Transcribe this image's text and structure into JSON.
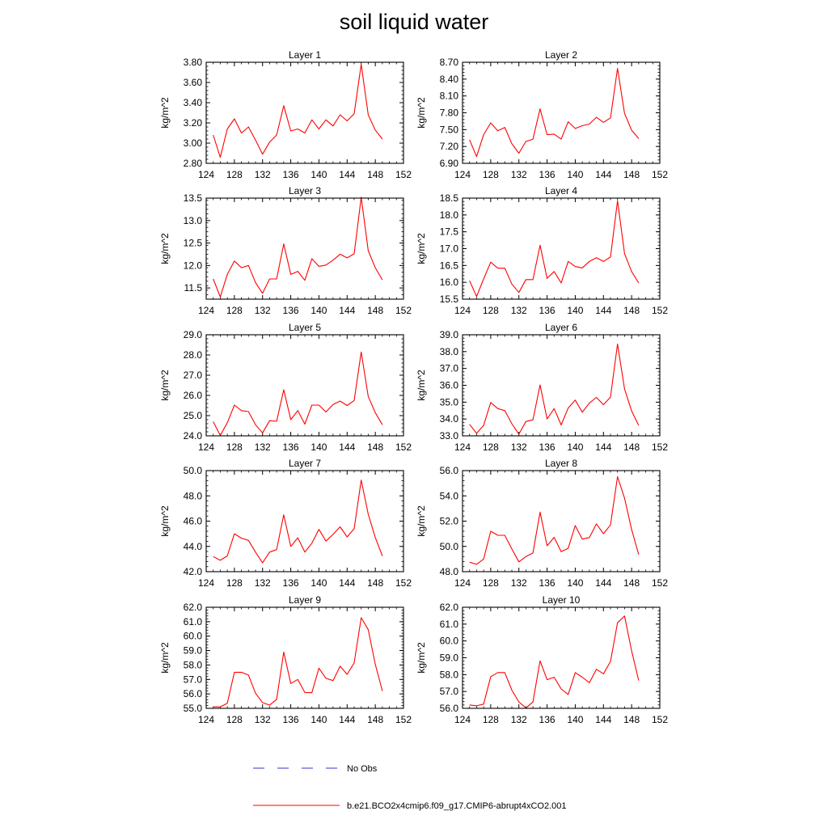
{
  "title": "soil liquid water",
  "chart_data": {
    "type": "line",
    "x": [
      125,
      126,
      127,
      128,
      129,
      130,
      131,
      132,
      133,
      134,
      135,
      136,
      137,
      138,
      139,
      140,
      141,
      142,
      143,
      144,
      145,
      146,
      147,
      148,
      149
    ],
    "xlim": [
      124,
      152
    ],
    "xticks": [
      124,
      128,
      132,
      136,
      140,
      144,
      148,
      152
    ],
    "series_name": "b.e21.BCO2x4cmip6.f09_g17.CMIP6-abrupt4xCO2.001",
    "series_color": "#ff0000",
    "panels": [
      {
        "title": "Layer 1",
        "ylabel": "kg/m^2",
        "ylim": [
          2.8,
          3.8
        ],
        "yticks": [
          "2.80",
          "3.00",
          "3.20",
          "3.40",
          "3.60",
          "3.80"
        ],
        "values": [
          3.08,
          2.86,
          3.14,
          3.24,
          3.1,
          3.16,
          3.03,
          2.89,
          3.01,
          3.08,
          3.37,
          3.12,
          3.14,
          3.1,
          3.23,
          3.14,
          3.23,
          3.17,
          3.28,
          3.22,
          3.29,
          3.78,
          3.28,
          3.13,
          3.04
        ]
      },
      {
        "title": "Layer 2",
        "ylabel": "kg/m^2",
        "ylim": [
          6.9,
          8.7
        ],
        "yticks": [
          "6.90",
          "7.20",
          "7.50",
          "7.80",
          "8.10",
          "8.40",
          "8.70"
        ],
        "values": [
          7.32,
          7.02,
          7.41,
          7.62,
          7.48,
          7.54,
          7.25,
          7.08,
          7.29,
          7.33,
          7.87,
          7.41,
          7.42,
          7.33,
          7.64,
          7.52,
          7.57,
          7.6,
          7.72,
          7.63,
          7.71,
          8.59,
          7.79,
          7.49,
          7.34
        ]
      },
      {
        "title": "Layer 3",
        "ylabel": "kg/m^2",
        "ylim": [
          11.25,
          13.5
        ],
        "yticks": [
          "11.5",
          "12.0",
          "12.5",
          "13.0",
          "13.5"
        ],
        "values": [
          11.7,
          11.3,
          11.8,
          12.1,
          11.95,
          12.0,
          11.62,
          11.38,
          11.7,
          11.7,
          12.48,
          11.8,
          11.87,
          11.67,
          12.15,
          11.98,
          12.01,
          12.12,
          12.25,
          12.17,
          12.26,
          13.52,
          12.33,
          11.95,
          11.68
        ]
      },
      {
        "title": "Layer 4",
        "ylabel": "kg/m^2",
        "ylim": [
          15.5,
          18.5
        ],
        "yticks": [
          "15.5",
          "16.0",
          "16.5",
          "17.0",
          "17.5",
          "18.0",
          "18.5"
        ],
        "values": [
          16.05,
          15.58,
          16.1,
          16.6,
          16.42,
          16.42,
          15.95,
          15.7,
          16.08,
          16.08,
          17.1,
          16.12,
          16.32,
          15.98,
          16.62,
          16.47,
          16.43,
          16.62,
          16.73,
          16.62,
          16.75,
          18.42,
          16.85,
          16.32,
          15.98
        ]
      },
      {
        "title": "Layer 5",
        "ylabel": "kg/m^2",
        "ylim": [
          24.0,
          29.0
        ],
        "yticks": [
          "24.0",
          "25.0",
          "26.0",
          "27.0",
          "28.0",
          "29.0"
        ],
        "values": [
          24.7,
          24.02,
          24.65,
          25.52,
          25.25,
          25.2,
          24.55,
          24.15,
          24.75,
          24.72,
          26.28,
          24.8,
          25.25,
          24.58,
          25.52,
          25.52,
          25.18,
          25.55,
          25.72,
          25.5,
          25.75,
          28.15,
          25.95,
          25.15,
          24.55
        ]
      },
      {
        "title": "Layer 6",
        "ylabel": "kg/m^2",
        "ylim": [
          33.0,
          39.0
        ],
        "yticks": [
          "33.0",
          "34.0",
          "35.0",
          "36.0",
          "37.0",
          "38.0",
          "39.0"
        ],
        "values": [
          33.68,
          33.15,
          33.62,
          34.98,
          34.62,
          34.5,
          33.72,
          33.1,
          33.85,
          33.95,
          36.02,
          34.0,
          34.62,
          33.65,
          34.65,
          35.12,
          34.4,
          34.95,
          35.28,
          34.85,
          35.3,
          38.45,
          35.78,
          34.48,
          33.62
        ]
      },
      {
        "title": "Layer 7",
        "ylabel": "kg/m^2",
        "ylim": [
          42.0,
          50.0
        ],
        "yticks": [
          "42.0",
          "44.0",
          "46.0",
          "48.0",
          "50.0"
        ],
        "values": [
          43.2,
          42.9,
          43.25,
          45.0,
          44.65,
          44.48,
          43.55,
          42.7,
          43.55,
          43.75,
          46.5,
          44.0,
          44.68,
          43.55,
          44.25,
          45.35,
          44.42,
          44.95,
          45.55,
          44.75,
          45.4,
          49.25,
          46.55,
          44.7,
          43.25
        ]
      },
      {
        "title": "Layer 8",
        "ylabel": "kg/m^2",
        "ylim": [
          48.0,
          56.0
        ],
        "yticks": [
          "48.0",
          "50.0",
          "52.0",
          "54.0",
          "56.0"
        ],
        "values": [
          48.75,
          48.58,
          49.0,
          51.2,
          50.88,
          50.88,
          49.8,
          48.78,
          49.2,
          49.48,
          52.72,
          50.05,
          50.72,
          49.58,
          49.85,
          51.65,
          50.58,
          50.7,
          51.78,
          51.0,
          51.7,
          55.52,
          53.82,
          51.35,
          49.35
        ]
      },
      {
        "title": "Layer 9",
        "ylabel": "kg/m^2",
        "ylim": [
          55.0,
          62.0
        ],
        "yticks": [
          "55.0",
          "56.0",
          "57.0",
          "58.0",
          "59.0",
          "60.0",
          "61.0",
          "62.0"
        ],
        "values": [
          55.1,
          55.1,
          55.35,
          57.5,
          57.5,
          57.3,
          56.05,
          55.4,
          55.22,
          55.62,
          58.9,
          56.72,
          57.0,
          56.1,
          56.08,
          57.78,
          57.08,
          56.92,
          57.92,
          57.35,
          58.15,
          61.28,
          60.45,
          58.05,
          56.2
        ]
      },
      {
        "title": "Layer 10",
        "ylabel": "kg/m^2",
        "ylim": [
          56.0,
          62.0
        ],
        "yticks": [
          "56.0",
          "57.0",
          "58.0",
          "59.0",
          "60.0",
          "61.0",
          "62.0"
        ],
        "values": [
          56.2,
          56.15,
          56.25,
          57.88,
          58.12,
          58.12,
          57.08,
          56.38,
          56.02,
          56.38,
          58.82,
          57.7,
          57.85,
          57.15,
          56.82,
          58.12,
          57.85,
          57.52,
          58.32,
          58.05,
          58.78,
          61.08,
          61.48,
          59.42,
          57.65
        ]
      }
    ]
  },
  "legend": {
    "no_obs_label": "No Obs",
    "no_obs_color": "#3333cc",
    "series_label": "b.e21.BCO2x4cmip6.f09_g17.CMIP6-abrupt4xCO2.001",
    "series_color": "#ff0000"
  }
}
